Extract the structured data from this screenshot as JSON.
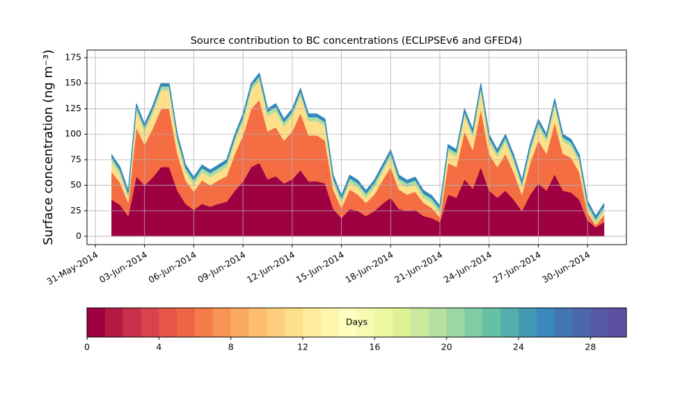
{
  "chart_data": {
    "type": "stackedarea",
    "title": "Source contribution to BC concentrations (ECLIPSEv6 and GFED4)",
    "y_label": "Surface concentration (ng m⁻³)",
    "x": [
      1.0,
      1.5,
      2.0,
      2.5,
      3.0,
      3.5,
      4.0,
      4.5,
      5.0,
      5.5,
      6.0,
      6.5,
      7.0,
      7.5,
      8.0,
      8.5,
      9.0,
      9.5,
      10.0,
      10.5,
      11.0,
      11.5,
      12.0,
      12.5,
      13.0,
      13.5,
      14.0,
      14.5,
      15.0,
      15.5,
      16.0,
      16.5,
      17.0,
      17.5,
      18.0,
      18.5,
      19.0,
      19.5,
      20.0,
      20.5,
      21.0,
      21.5,
      22.0,
      22.5,
      23.0,
      23.5,
      24.0,
      24.5,
      25.0,
      25.5,
      26.0,
      26.5,
      27.0,
      27.5,
      28.0,
      28.5,
      29.0,
      29.5,
      30.0,
      30.5,
      31.0
    ],
    "series": [
      {
        "color": "#9e0142",
        "values": [
          36,
          31,
          20,
          59,
          50,
          58,
          68,
          68,
          45,
          32,
          26,
          32,
          29,
          32,
          34,
          45,
          54,
          68,
          72,
          56,
          59,
          52,
          56,
          65,
          54,
          54,
          52,
          27,
          18,
          27,
          25,
          20,
          25,
          32,
          38,
          27,
          25,
          26,
          20,
          18,
          14,
          41,
          38,
          56,
          47,
          68,
          45,
          38,
          45,
          36,
          25,
          41,
          52,
          45,
          61,
          45,
          43,
          36,
          16,
          9,
          14
        ]
      },
      {
        "color": "#f46d43",
        "values": [
          27,
          22,
          13,
          48,
          40,
          48,
          57,
          57,
          36,
          23,
          18,
          23,
          21,
          23,
          25,
          36,
          45,
          57,
          62,
          47,
          48,
          42,
          47,
          56,
          45,
          45,
          42,
          19,
          10,
          19,
          16,
          13,
          16,
          23,
          30,
          19,
          16,
          18,
          13,
          10,
          5,
          31,
          30,
          47,
          38,
          57,
          36,
          30,
          36,
          27,
          16,
          31,
          42,
          36,
          51,
          36,
          34,
          27,
          8,
          2,
          7
        ]
      },
      {
        "color": "#fee08b",
        "values": [
          10,
          8,
          5,
          16,
          13,
          15,
          18,
          18,
          12,
          8,
          7,
          8,
          8,
          8,
          9,
          12,
          14,
          18,
          19,
          15,
          16,
          14,
          15,
          17,
          14,
          14,
          14,
          7,
          5,
          7,
          7,
          5,
          7,
          8,
          10,
          7,
          7,
          7,
          5,
          5,
          4,
          11,
          10,
          15,
          13,
          18,
          12,
          10,
          12,
          10,
          7,
          11,
          14,
          12,
          16,
          12,
          11,
          10,
          4,
          2,
          4
        ]
      },
      {
        "color": "#abdda4",
        "values": [
          4,
          4,
          4,
          4,
          4,
          4,
          4,
          4,
          4,
          4,
          4,
          4,
          4,
          4,
          4,
          4,
          4,
          4,
          4,
          4,
          4,
          4,
          4,
          4,
          4,
          4,
          4,
          4,
          4,
          4,
          4,
          4,
          4,
          4,
          4,
          4,
          4,
          4,
          4,
          4,
          4,
          4,
          4,
          4,
          4,
          4,
          4,
          4,
          4,
          4,
          4,
          4,
          4,
          4,
          4,
          4,
          4,
          4,
          4,
          4,
          4
        ]
      },
      {
        "color": "#3288bd",
        "values": [
          3,
          3,
          3,
          3,
          3,
          3,
          3,
          3,
          3,
          3,
          3,
          3,
          3,
          3,
          3,
          3,
          3,
          3,
          3,
          3,
          3,
          3,
          3,
          3,
          3,
          3,
          3,
          3,
          3,
          3,
          3,
          3,
          3,
          3,
          3,
          3,
          3,
          3,
          3,
          3,
          3,
          3,
          3,
          3,
          3,
          3,
          3,
          3,
          3,
          3,
          3,
          3,
          3,
          3,
          3,
          3,
          3,
          3,
          3,
          3,
          3
        ]
      }
    ],
    "xlim": [
      -0.51,
      32.37
    ],
    "xticks": [
      {
        "value": 0,
        "label": "31-May-2014"
      },
      {
        "value": 3,
        "label": "03-Jun-2014"
      },
      {
        "value": 6,
        "label": "06-Jun-2014"
      },
      {
        "value": 9,
        "label": "09-Jun-2014"
      },
      {
        "value": 12,
        "label": "12-Jun-2014"
      },
      {
        "value": 15,
        "label": "15-Jun-2014"
      },
      {
        "value": 18,
        "label": "18-Jun-2014"
      },
      {
        "value": 21,
        "label": "21-Jun-2014"
      },
      {
        "value": 24,
        "label": "24-Jun-2014"
      },
      {
        "value": 27,
        "label": "27-Jun-2014"
      },
      {
        "value": 30,
        "label": "30-Jun-2014"
      }
    ],
    "ylim": [
      -8.2,
      182.5
    ],
    "yticks": [
      0,
      25,
      50,
      75,
      100,
      125,
      150,
      175
    ],
    "grid": true,
    "colorbar": {
      "label": "Days",
      "lim": [
        0,
        30
      ],
      "ticks": [
        0,
        4,
        8,
        12,
        16,
        20,
        24,
        28
      ],
      "colors": [
        "#9e0142",
        "#b51a44",
        "#c9304a",
        "#d8434e",
        "#e55649",
        "#ee6546",
        "#f67b4a",
        "#f99355",
        "#fcaa61",
        "#fdbe6f",
        "#fece7f",
        "#fee08b",
        "#feeb9d",
        "#fff6ae",
        "#fffebe",
        "#f7fbb2",
        "#ecf7a2",
        "#dff293",
        "#cbe99d",
        "#b5e0a2",
        "#9bd6a4",
        "#80cca5",
        "#68c0a4",
        "#56aeaa",
        "#429bb4",
        "#3a88bd",
        "#4475b3",
        "#4c68ad",
        "#5559a6",
        "#5e4fa2"
      ]
    }
  }
}
